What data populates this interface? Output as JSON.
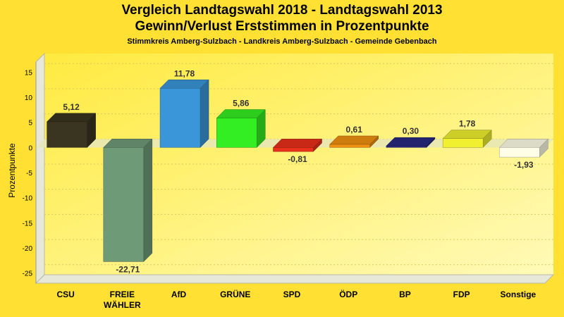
{
  "chart_data": {
    "type": "bar",
    "title": "Vergleich Landtagswahl 2018 - Landtagswahl 2013",
    "subtitle": "Gewinn/Verlust Erststimmen in Prozentpunkte",
    "caption": "Stimmkreis Amberg-Sulzbach - Landkreis Amberg-Sulzbach - Gemeinde Gebenbach",
    "ylabel": "Prozentpunkte",
    "ylim": [
      -27,
      17
    ],
    "yticks": [
      15,
      10,
      5,
      0,
      -5,
      -10,
      -15,
      -20,
      -25
    ],
    "categories": [
      "CSU",
      "FREIE WÄHLER",
      "AfD",
      "GRÜNE",
      "SPD",
      "ÖDP",
      "BP",
      "FDP",
      "Sonstige"
    ],
    "values": [
      5.12,
      -22.71,
      11.78,
      5.86,
      -0.81,
      0.61,
      0.3,
      1.78,
      -1.93
    ],
    "value_labels": [
      "5,12",
      "-22,71",
      "11,78",
      "5,86",
      "-0,81",
      "0,61",
      "0,30",
      "1,78",
      "-1,93"
    ],
    "colors": [
      "#3A3520",
      "#6E9A78",
      "#3A96D8",
      "#33EE22",
      "#E8301A",
      "#F09010",
      "#2A2A80",
      "#F0F030",
      "#FFFFE8"
    ],
    "grid": true,
    "legend": "none"
  }
}
